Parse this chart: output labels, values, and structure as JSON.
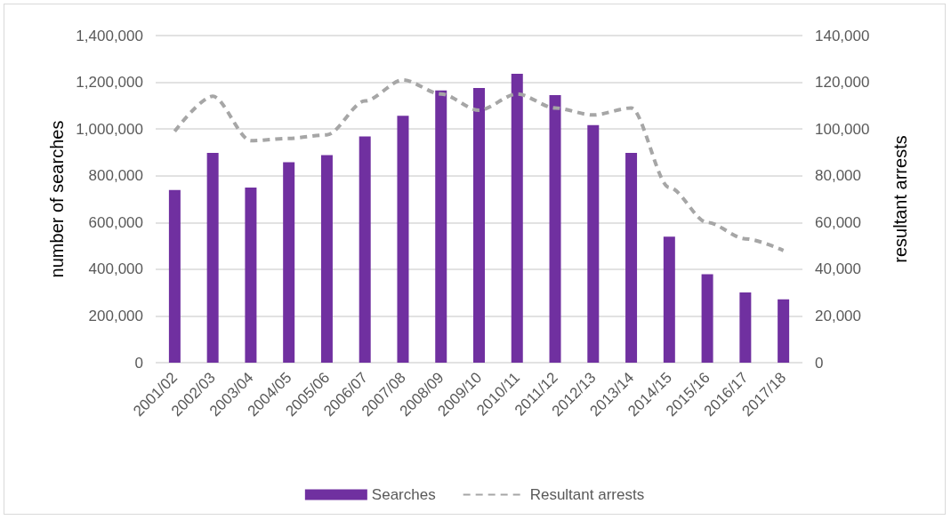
{
  "chart_data": {
    "type": "bar",
    "categories": [
      "2001/02",
      "2002/03",
      "2003/04",
      "2004/05",
      "2005/06",
      "2006/07",
      "2007/08",
      "2008/09",
      "2009/10",
      "2010/11",
      "2011/12",
      "2012/13",
      "2013/14",
      "2014/15",
      "2015/16",
      "2016/17",
      "2017/18"
    ],
    "series": [
      {
        "name": "Searches",
        "color": "#7030a0",
        "values": [
          739000,
          898000,
          749000,
          858000,
          888000,
          968000,
          1057000,
          1165000,
          1176000,
          1236000,
          1145000,
          1017000,
          898000,
          539000,
          379000,
          301000,
          271000
        ]
      },
      {
        "name": "Resultant arrests",
        "type": "line",
        "axis": "y2",
        "color": "#a6a6a6",
        "line_style": "dashed",
        "marker": "none",
        "values": [
          99000,
          114000,
          95000,
          96000,
          97500,
          112000,
          121000,
          115000,
          108000,
          115000,
          109000,
          106000,
          109000,
          75000,
          60000,
          53000,
          48000
        ]
      }
    ],
    "ylabel": "number of searches",
    "y2label": "resultant arrests",
    "ylim": [
      0,
      1400000
    ],
    "yticks": [
      0,
      {
        "value": 200000,
        "label": "200,000"
      },
      {
        "value": 400000,
        "label": "400,000"
      },
      {
        "value": 600000,
        "label": "600,000"
      },
      {
        "value": 800000,
        "label": "800,000"
      },
      {
        "value": 1000000,
        "label": "1,000,000"
      },
      {
        "value": 1200000,
        "label": "1,200,000"
      },
      {
        "value": 1400000,
        "label": "1,400,000"
      }
    ],
    "y2lim": [
      0,
      140000
    ],
    "y2ticks": [
      0,
      {
        "value": 20000,
        "label": "20,000"
      },
      {
        "value": 40000,
        "label": "40,000"
      },
      {
        "value": 60000,
        "label": "60,000"
      },
      {
        "value": 80000,
        "label": "80,000"
      },
      {
        "value": 100000,
        "label": "100,000"
      },
      {
        "value": 120000,
        "label": "120,000"
      },
      {
        "value": 140000,
        "label": "140,000"
      }
    ],
    "grid": "y",
    "legend": "bottom"
  }
}
